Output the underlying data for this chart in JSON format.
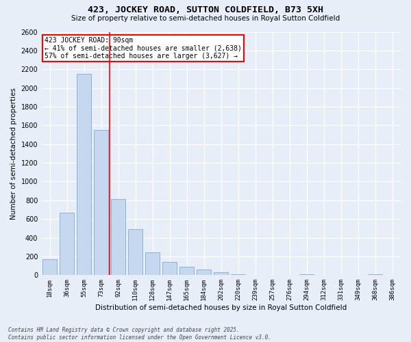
{
  "title": "423, JOCKEY ROAD, SUTTON COLDFIELD, B73 5XH",
  "subtitle": "Size of property relative to semi-detached houses in Royal Sutton Coldfield",
  "xlabel": "Distribution of semi-detached houses by size in Royal Sutton Coldfield",
  "ylabel": "Number of semi-detached properties",
  "categories": [
    "18sqm",
    "36sqm",
    "55sqm",
    "73sqm",
    "92sqm",
    "110sqm",
    "128sqm",
    "147sqm",
    "165sqm",
    "184sqm",
    "202sqm",
    "220sqm",
    "239sqm",
    "257sqm",
    "276sqm",
    "294sqm",
    "312sqm",
    "331sqm",
    "349sqm",
    "368sqm",
    "386sqm"
  ],
  "values": [
    170,
    670,
    2150,
    1550,
    810,
    490,
    240,
    140,
    90,
    60,
    30,
    10,
    0,
    0,
    0,
    10,
    0,
    0,
    0,
    10,
    0
  ],
  "bar_color": "#c5d8ef",
  "bar_edge_color": "#7aadd4",
  "vline_pos": 3.5,
  "vline_color": "red",
  "annotation_line1": "423 JOCKEY ROAD: 90sqm",
  "annotation_line2": "← 41% of semi-detached houses are smaller (2,638)",
  "annotation_line3": "57% of semi-detached houses are larger (3,627) →",
  "ylim": [
    0,
    2600
  ],
  "yticks": [
    0,
    200,
    400,
    600,
    800,
    1000,
    1200,
    1400,
    1600,
    1800,
    2000,
    2200,
    2400,
    2600
  ],
  "bg_color": "#e8eef7",
  "grid_color": "#ffffff",
  "footnote1": "Contains HM Land Registry data © Crown copyright and database right 2025.",
  "footnote2": "Contains public sector information licensed under the Open Government Licence v3.0."
}
